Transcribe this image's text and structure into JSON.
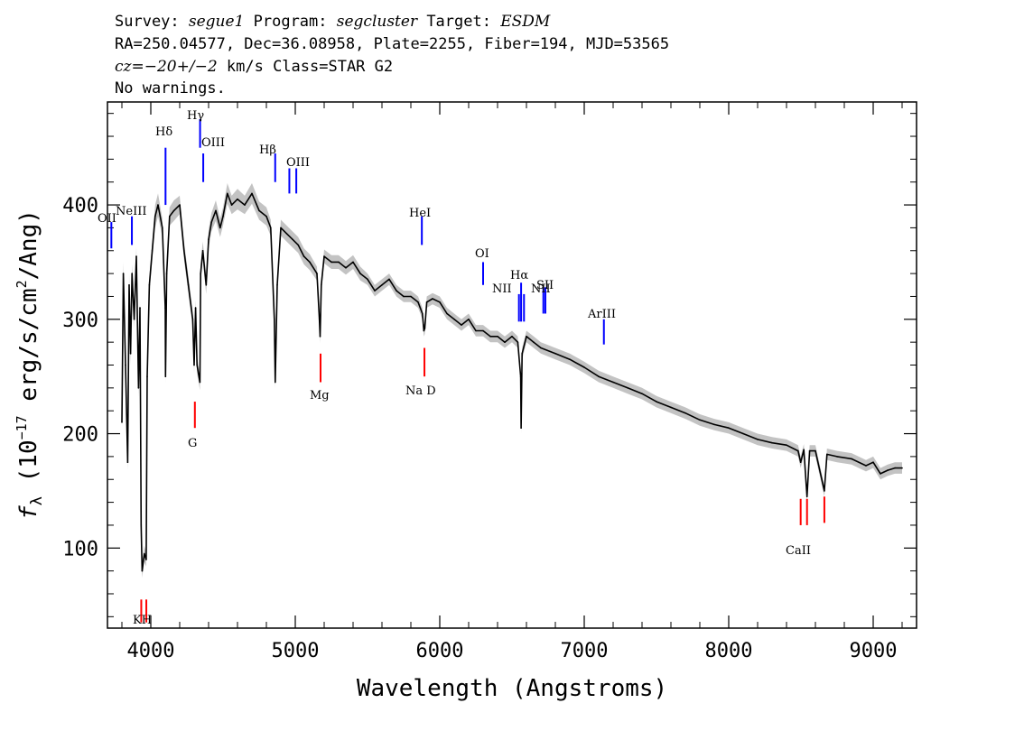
{
  "header": {
    "line1": {
      "survey_label": "Survey: ",
      "survey": "segue1",
      "program_label": " Program: ",
      "program": "segcluster",
      "target_label": " Target: ",
      "target": "ESDM"
    },
    "line2": "RA=250.04577, Dec=36.08958, Plate=2255, Fiber=194, MJD=53565",
    "line3": {
      "cz_label": "cz=",
      "cz_value": "−20+/−2",
      "cz_rest": " km/s Class=STAR G2"
    },
    "line4": "No warnings."
  },
  "colors": {
    "spectrum": "#000000",
    "error_band": "#b4b4b4",
    "emission": "#0000ff",
    "absorption": "#ff0000"
  },
  "chart_data": {
    "type": "line",
    "xlabel": "Wavelength (Angstroms)",
    "ylabel": "fλ (10⁻¹⁷ erg/s/cm²/Ang)",
    "ylabel_parts": {
      "f": "f",
      "lambda_sub": "λ",
      "pre": " (10",
      "exp1": "−17",
      "mid": " erg/s/cm",
      "exp2": "2",
      "post": "/Ang)"
    },
    "xlim": [
      3700,
      9300
    ],
    "ylim": [
      30,
      490
    ],
    "xticks": [
      4000,
      5000,
      6000,
      7000,
      8000,
      9000
    ],
    "xtick_labels": [
      "4000",
      "5000",
      "6000",
      "7000",
      "8000",
      "9000"
    ],
    "yticks": [
      100,
      200,
      300,
      400
    ],
    "ytick_labels": [
      "100",
      "200",
      "300",
      "400"
    ],
    "grid": false,
    "series": [
      {
        "x": [
          3800,
          3810,
          3825,
          3840,
          3850,
          3860,
          3870,
          3885,
          3900,
          3915,
          3925,
          3933,
          3940,
          3955,
          3968,
          3975,
          3990,
          4010,
          4030,
          4050,
          4080,
          4100,
          4102,
          4110,
          4130,
          4160,
          4200,
          4230,
          4260,
          4290,
          4300,
          4310,
          4320,
          4340,
          4345,
          4360,
          4383,
          4400,
          4420,
          4450,
          4480,
          4500,
          4530,
          4560,
          4600,
          4650,
          4700,
          4750,
          4800,
          4830,
          4855,
          4861,
          4875,
          4900,
          4940,
          4980,
          5020,
          5060,
          5100,
          5150,
          5167,
          5172,
          5180,
          5200,
          5250,
          5300,
          5350,
          5400,
          5450,
          5500,
          5550,
          5600,
          5650,
          5700,
          5750,
          5800,
          5850,
          5880,
          5890,
          5896,
          5910,
          5950,
          6000,
          6050,
          6100,
          6150,
          6200,
          6250,
          6300,
          6350,
          6400,
          6450,
          6500,
          6540,
          6560,
          6563,
          6570,
          6600,
          6650,
          6700,
          6800,
          6900,
          7000,
          7100,
          7200,
          7300,
          7400,
          7500,
          7600,
          7700,
          7800,
          7900,
          8000,
          8100,
          8200,
          8300,
          8400,
          8480,
          8498,
          8520,
          8542,
          8560,
          8600,
          8662,
          8680,
          8750,
          8850,
          8950,
          9000,
          9050,
          9100,
          9150,
          9200
        ],
        "y": [
          210,
          340,
          260,
          175,
          330,
          270,
          340,
          300,
          355,
          240,
          310,
          120,
          80,
          95,
          90,
          250,
          330,
          360,
          390,
          400,
          380,
          310,
          250,
          340,
          390,
          395,
          400,
          360,
          330,
          300,
          260,
          310,
          260,
          245,
          340,
          360,
          330,
          370,
          385,
          395,
          380,
          390,
          410,
          400,
          405,
          400,
          410,
          395,
          390,
          380,
          300,
          245,
          330,
          380,
          375,
          370,
          365,
          355,
          350,
          340,
          300,
          285,
          330,
          355,
          350,
          350,
          345,
          350,
          340,
          335,
          325,
          330,
          335,
          325,
          320,
          320,
          315,
          305,
          290,
          292,
          315,
          318,
          315,
          305,
          300,
          295,
          300,
          290,
          290,
          285,
          285,
          280,
          285,
          280,
          250,
          205,
          270,
          285,
          280,
          275,
          270,
          265,
          258,
          250,
          245,
          240,
          235,
          228,
          223,
          218,
          212,
          208,
          205,
          200,
          195,
          192,
          190,
          185,
          175,
          186,
          145,
          185,
          185,
          150,
          182,
          180,
          178,
          172,
          175,
          165,
          168,
          170,
          170
        ],
        "lower": [
          205,
          330,
          250,
          168,
          320,
          260,
          332,
          292,
          347,
          232,
          302,
          112,
          74,
          88,
          84,
          242,
          322,
          352,
          380,
          390,
          372,
          302,
          244,
          332,
          382,
          386,
          392,
          352,
          322,
          293,
          253,
          303,
          253,
          238,
          332,
          352,
          322,
          362,
          377,
          386,
          372,
          382,
          401,
          392,
          396,
          392,
          401,
          387,
          382,
          373,
          294,
          239,
          323,
          373,
          368,
          363,
          358,
          348,
          343,
          334,
          294,
          279,
          324,
          349,
          344,
          344,
          339,
          344,
          334,
          330,
          320,
          325,
          330,
          320,
          315,
          315,
          310,
          300,
          285,
          287,
          310,
          313,
          310,
          300,
          295,
          290,
          295,
          285,
          285,
          280,
          280,
          275,
          280,
          275,
          245,
          200,
          265,
          280,
          275,
          270,
          265,
          260,
          253,
          245,
          240,
          235,
          230,
          223,
          218,
          213,
          207,
          203,
          200,
          195,
          190,
          187,
          185,
          180,
          170,
          181,
          140,
          180,
          180,
          145,
          177,
          175,
          173,
          167,
          170,
          160,
          163,
          165,
          165
        ],
        "upper": [
          215,
          350,
          270,
          182,
          340,
          280,
          348,
          308,
          363,
          248,
          318,
          128,
          86,
          102,
          96,
          258,
          338,
          368,
          400,
          410,
          388,
          318,
          256,
          348,
          398,
          404,
          408,
          368,
          338,
          307,
          267,
          317,
          267,
          252,
          348,
          368,
          338,
          378,
          393,
          404,
          388,
          398,
          419,
          408,
          414,
          408,
          419,
          403,
          398,
          387,
          306,
          251,
          337,
          387,
          382,
          377,
          372,
          362,
          357,
          346,
          306,
          291,
          336,
          361,
          356,
          356,
          351,
          356,
          346,
          340,
          330,
          335,
          340,
          330,
          325,
          325,
          320,
          310,
          295,
          297,
          320,
          323,
          320,
          310,
          305,
          300,
          305,
          295,
          295,
          290,
          290,
          285,
          290,
          285,
          255,
          210,
          275,
          290,
          285,
          280,
          275,
          270,
          263,
          255,
          250,
          245,
          240,
          233,
          228,
          223,
          217,
          213,
          210,
          205,
          200,
          197,
          195,
          190,
          180,
          191,
          150,
          190,
          190,
          155,
          187,
          185,
          183,
          177,
          180,
          170,
          173,
          175,
          175
        ]
      }
    ],
    "emission_lines": [
      {
        "label": "OII",
        "x": 3727,
        "y0": 362,
        "y1": 385
      },
      {
        "label": "NeIII",
        "x": 3869,
        "y0": 365,
        "y1": 390
      },
      {
        "label": "Hδ",
        "x": 4102,
        "y0": 400,
        "y1": 450
      },
      {
        "label": "Hγ",
        "x": 4341,
        "y0": 450,
        "y1": 475
      },
      {
        "label": "OIII",
        "x": 4363,
        "y0": 420,
        "y1": 445
      },
      {
        "label": "Hβ",
        "x": 4861,
        "y0": 420,
        "y1": 445
      },
      {
        "label": "OIII",
        "x": 4959,
        "y0": 410,
        "y1": 432
      },
      {
        "label": "OIII",
        "x": 5007,
        "y0": 410,
        "y1": 432
      },
      {
        "label": "HeI",
        "x": 5876,
        "y0": 365,
        "y1": 390
      },
      {
        "label": "OI",
        "x": 6300,
        "y0": 330,
        "y1": 350
      },
      {
        "label": "NII",
        "x": 6548,
        "y0": 298,
        "y1": 322
      },
      {
        "label": "Hα",
        "x": 6563,
        "y0": 298,
        "y1": 332
      },
      {
        "label": "NII",
        "x": 6583,
        "y0": 298,
        "y1": 322
      },
      {
        "label": "SII",
        "x": 6717,
        "y0": 305,
        "y1": 328
      },
      {
        "label": "SII",
        "x": 6731,
        "y0": 305,
        "y1": 328
      },
      {
        "label": "ArIII",
        "x": 7136,
        "y0": 278,
        "y1": 300
      }
    ],
    "absorption_lines": [
      {
        "label": "K",
        "x": 3934,
        "y0": 35,
        "y1": 55
      },
      {
        "label": "H",
        "x": 3969,
        "y0": 35,
        "y1": 55
      },
      {
        "label": "G",
        "x": 4305,
        "y0": 205,
        "y1": 228
      },
      {
        "label": "Mg",
        "x": 5175,
        "y0": 245,
        "y1": 270
      },
      {
        "label": "Na D",
        "x": 5894,
        "y0": 250,
        "y1": 275
      },
      {
        "label": "CaII",
        "x": 8498,
        "y0": 120,
        "y1": 143
      },
      {
        "label": "CaII",
        "x": 8542,
        "y0": 120,
        "y1": 143
      },
      {
        "label": "CaII",
        "x": 8662,
        "y0": 122,
        "y1": 145
      }
    ],
    "line_label_text": {
      "oii": "OII",
      "neiii": "NeIII",
      "hdelta": "Hδ",
      "hgamma": "Hγ",
      "oiii_a": "OIII",
      "hbeta": "Hβ",
      "oiii_b": "OIII",
      "hei": "HeI",
      "oi": "OI",
      "nii_a": "NII",
      "halpha": "Hα",
      "nii_b": "NII",
      "sii": "SII",
      "ariii": "ArIII",
      "kh": "KH",
      "g": "G",
      "mg": "Mg",
      "nad": "Na D",
      "caii": "CaII"
    }
  }
}
